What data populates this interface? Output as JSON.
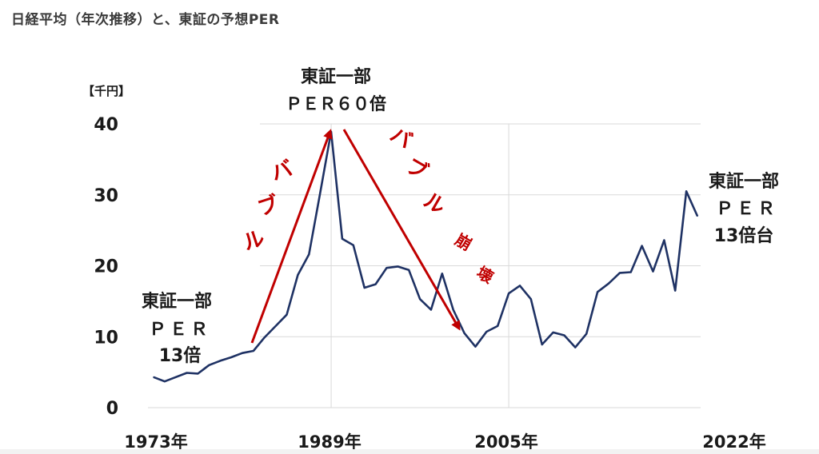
{
  "page": {
    "title": "日経平均（年次推移）と、東証の予想PER"
  },
  "chart_data": {
    "type": "line",
    "title": "日経平均（年次推移）と、東証の予想PER",
    "unit_label": "【千円】",
    "ylim": [
      0,
      40
    ],
    "y_ticks": [
      "0",
      "10",
      "20",
      "30",
      "40"
    ],
    "x_ticks": [
      "1973年",
      "1989年",
      "2005年",
      "2022年"
    ],
    "grid": true,
    "series": [
      {
        "color": "#1f3264",
        "x": [
          1973,
          1974,
          1975,
          1976,
          1977,
          1978,
          1979,
          1980,
          1981,
          1982,
          1983,
          1984,
          1985,
          1986,
          1987,
          1988,
          1989,
          1990,
          1991,
          1992,
          1993,
          1994,
          1995,
          1996,
          1997,
          1998,
          1999,
          2000,
          2001,
          2002,
          2003,
          2004,
          2005,
          2006,
          2007,
          2008,
          2009,
          2010,
          2011,
          2012,
          2013,
          2014,
          2015,
          2016,
          2017,
          2018,
          2019,
          2020,
          2021,
          2022
        ],
        "y": [
          4.3,
          3.7,
          4.3,
          4.9,
          4.8,
          6.0,
          6.6,
          7.1,
          7.7,
          8.0,
          9.9,
          11.5,
          13.1,
          18.7,
          21.6,
          30.2,
          38.9,
          23.8,
          22.9,
          16.9,
          17.4,
          19.7,
          19.9,
          19.4,
          15.3,
          13.8,
          18.9,
          13.8,
          10.5,
          8.6,
          10.7,
          11.5,
          16.1,
          17.2,
          15.3,
          8.9,
          10.6,
          10.2,
          8.5,
          10.4,
          16.3,
          17.5,
          19.0,
          19.1,
          22.8,
          19.2,
          23.6,
          16.5,
          30.5,
          27.0
        ]
      }
    ],
    "annotations": {
      "peak_label_line1": "東証一部",
      "peak_label_line2": "ＰＥＲ６０倍",
      "left_label_line1": "東証一部",
      "left_label_line2": "ＰＥＲ",
      "left_label_line3": "13倍",
      "right_label_line1": "東証一部",
      "right_label_line2": "ＰＥＲ",
      "right_label_line3": "13倍台",
      "bubble_chars": [
        "バ",
        "ブ",
        "ル"
      ],
      "collapse_chars": [
        "バ",
        "ブ",
        "ル",
        "崩",
        "壊"
      ]
    },
    "arrow_color": "#c00000"
  }
}
